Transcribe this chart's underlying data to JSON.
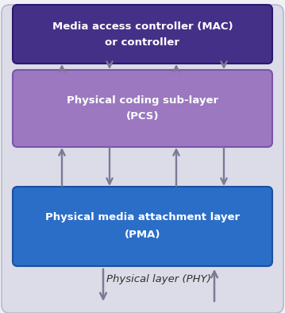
{
  "fig_bg": "#f0f0f5",
  "outer_color": "#dcdce8",
  "outer_edge": "#b8b8cc",
  "pma_color": "#2b6ec8",
  "pma_edge": "#1a50a0",
  "pcs_color": "#9b78c0",
  "pcs_edge": "#7a55a8",
  "mac_color": "#453088",
  "mac_edge": "#2a1870",
  "arrow_color": "#7a7a95",
  "white": "#ffffff",
  "dark": "#303030",
  "phy_label": "Physical layer (PHY)",
  "pma_line1": "Physical media attachment layer",
  "pma_line2": "(PMA)",
  "pcs_line1": "Physical coding sub-layer",
  "pcs_line2": "(PCS)",
  "mac_line1": "Media access controller (MAC)",
  "mac_line2": "or controller",
  "fig_w": 3.59,
  "fig_h": 3.94,
  "dpi": 100
}
